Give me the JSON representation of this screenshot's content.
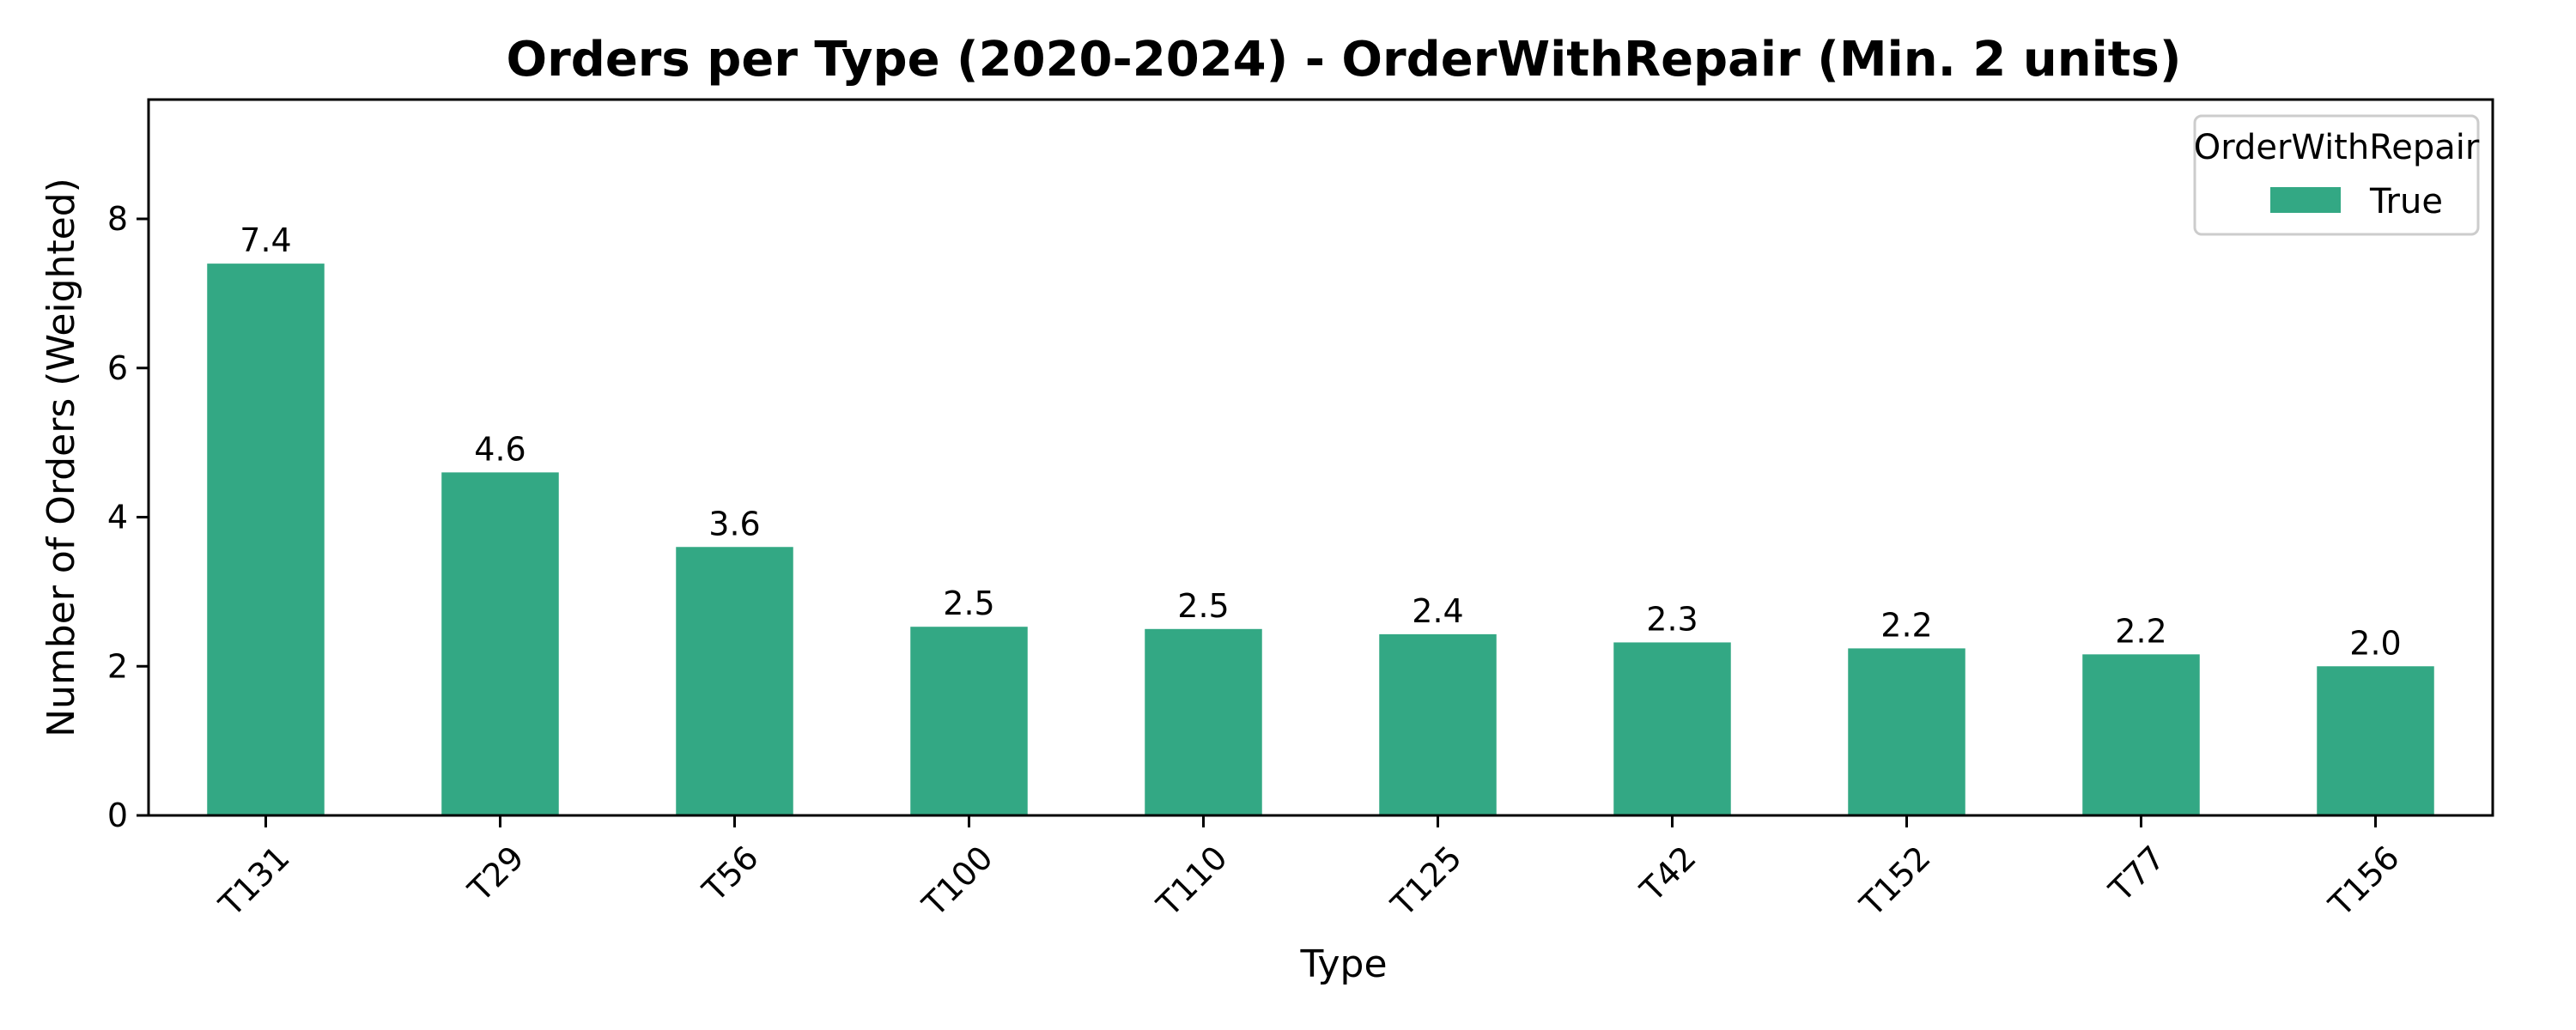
{
  "chart_data": {
    "type": "bar",
    "title": "Orders per Type (2020-2024) - OrderWithRepair (Min. 2 units)",
    "xlabel": "Type",
    "ylabel": "Number of Orders (Weighted)",
    "categories": [
      "T131",
      "T29",
      "T56",
      "T100",
      "T110",
      "T125",
      "T42",
      "T152",
      "T77",
      "T156"
    ],
    "series": [
      {
        "name": "True",
        "values": [
          7.4,
          4.6,
          3.6,
          2.53,
          2.5,
          2.43,
          2.32,
          2.24,
          2.16,
          2.0
        ],
        "labels": [
          "7.4",
          "4.6",
          "3.6",
          "2.5",
          "2.5",
          "2.4",
          "2.3",
          "2.2",
          "2.2",
          "2.0"
        ]
      }
    ],
    "ylim": [
      0,
      9.6
    ],
    "yticks": [
      0,
      2,
      4,
      6,
      8
    ],
    "ytick_labels": [
      "0",
      "2",
      "4",
      "6",
      "8"
    ],
    "legend": {
      "title": "OrderWithRepair",
      "position": "top-right"
    },
    "grid": false,
    "colors": {
      "bar": "#33a884"
    }
  }
}
